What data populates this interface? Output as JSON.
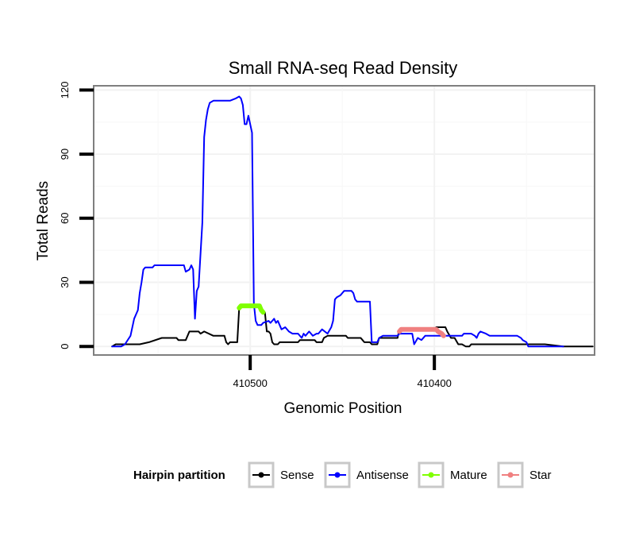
{
  "chart_data": {
    "type": "line",
    "title": "Small RNA-seq Read Density",
    "xlabel": "Genomic Position",
    "ylabel": "Total Reads",
    "x_reversed": true,
    "xlim": [
      410585,
      410313
    ],
    "ylim": [
      -4,
      122
    ],
    "x_ticks": [
      410500,
      410400
    ],
    "x_tick_labels": [
      "410500",
      "410400"
    ],
    "y_ticks": [
      0,
      30,
      60,
      90,
      120
    ],
    "y_tick_labels": [
      "0",
      "30",
      "60",
      "90",
      "120"
    ],
    "grid": true,
    "legend": {
      "title": "Hairpin partition",
      "position": "bottom"
    },
    "series": [
      {
        "name": "Sense",
        "color": "#000000",
        "points": [
          [
            410575,
            0
          ],
          [
            410573,
            1
          ],
          [
            410570,
            1
          ],
          [
            410565,
            1
          ],
          [
            410560,
            1
          ],
          [
            410555,
            2
          ],
          [
            410548,
            4
          ],
          [
            410546,
            4
          ],
          [
            410540,
            4
          ],
          [
            410539,
            3
          ],
          [
            410535,
            3
          ],
          [
            410533,
            7
          ],
          [
            410528,
            7
          ],
          [
            410527,
            6
          ],
          [
            410525,
            7
          ],
          [
            410520,
            5
          ],
          [
            410514,
            5
          ],
          [
            410513,
            2
          ],
          [
            410512,
            1
          ],
          [
            410511,
            2
          ],
          [
            410507,
            2
          ],
          [
            410506,
            18
          ],
          [
            410505,
            19
          ],
          [
            410495,
            19
          ],
          [
            410494,
            16
          ],
          [
            410492,
            16
          ],
          [
            410491,
            7
          ],
          [
            410490,
            7
          ],
          [
            410489,
            6
          ],
          [
            410488,
            2
          ],
          [
            410487,
            1
          ],
          [
            410485,
            1
          ],
          [
            410484,
            2
          ],
          [
            410474,
            2
          ],
          [
            410473,
            3
          ],
          [
            410465,
            3
          ],
          [
            410464,
            2
          ],
          [
            410461,
            2
          ],
          [
            410460,
            4
          ],
          [
            410458,
            5
          ],
          [
            410448,
            5
          ],
          [
            410447,
            4
          ],
          [
            410440,
            4
          ],
          [
            410439,
            3
          ],
          [
            410438,
            2
          ],
          [
            410435,
            2
          ],
          [
            410434,
            1
          ],
          [
            410431,
            1
          ],
          [
            410430,
            4
          ],
          [
            410420,
            4
          ],
          [
            410419,
            8
          ],
          [
            410418,
            8
          ],
          [
            410400,
            8
          ],
          [
            410399,
            9
          ],
          [
            410394,
            9
          ],
          [
            410393,
            7
          ],
          [
            410391,
            4
          ],
          [
            410389,
            4
          ],
          [
            410387,
            1
          ],
          [
            410385,
            1
          ],
          [
            410383,
            0
          ],
          [
            410381,
            0
          ],
          [
            410380,
            1
          ],
          [
            410372,
            1
          ],
          [
            410350,
            1
          ],
          [
            410340,
            1
          ],
          [
            410330,
            0
          ],
          [
            410314,
            0
          ]
        ]
      },
      {
        "name": "Antisense",
        "color": "#0000ff",
        "points": [
          [
            410575,
            0
          ],
          [
            410570,
            0
          ],
          [
            410568,
            1
          ],
          [
            410565,
            5
          ],
          [
            410563,
            13
          ],
          [
            410561,
            17
          ],
          [
            410560,
            25
          ],
          [
            410559,
            30
          ],
          [
            410558,
            36
          ],
          [
            410557,
            37
          ],
          [
            410553,
            37
          ],
          [
            410552,
            38
          ],
          [
            410541,
            38
          ],
          [
            410536,
            38
          ],
          [
            410535,
            35
          ],
          [
            410533,
            36
          ],
          [
            410532,
            38
          ],
          [
            410531,
            36
          ],
          [
            410530,
            13
          ],
          [
            410529,
            26
          ],
          [
            410528,
            28
          ],
          [
            410526,
            58
          ],
          [
            410525,
            98
          ],
          [
            410524,
            106
          ],
          [
            410523,
            111
          ],
          [
            410522,
            114
          ],
          [
            410520,
            115
          ],
          [
            410511,
            115
          ],
          [
            410508,
            116
          ],
          [
            410506,
            117
          ],
          [
            410505,
            116
          ],
          [
            410504,
            113
          ],
          [
            410503,
            104
          ],
          [
            410502,
            104
          ],
          [
            410501,
            108
          ],
          [
            410500,
            104
          ],
          [
            410499,
            100
          ],
          [
            410498,
            20
          ],
          [
            410497,
            12
          ],
          [
            410496,
            10
          ],
          [
            410494,
            10
          ],
          [
            410493,
            11
          ],
          [
            410490,
            12
          ],
          [
            410489,
            11
          ],
          [
            410488,
            12
          ],
          [
            410487,
            13
          ],
          [
            410486,
            11
          ],
          [
            410485,
            12
          ],
          [
            410484,
            10
          ],
          [
            410483,
            8
          ],
          [
            410481,
            9
          ],
          [
            410479,
            7
          ],
          [
            410477,
            6
          ],
          [
            410474,
            6
          ],
          [
            410472,
            4
          ],
          [
            410471,
            6
          ],
          [
            410470,
            5
          ],
          [
            410468,
            7
          ],
          [
            410466,
            5
          ],
          [
            410464,
            6
          ],
          [
            410463,
            6
          ],
          [
            410461,
            8
          ],
          [
            410458,
            6
          ],
          [
            410456,
            9
          ],
          [
            410455,
            12
          ],
          [
            410454,
            22
          ],
          [
            410453,
            23
          ],
          [
            410451,
            24
          ],
          [
            410450,
            25
          ],
          [
            410449,
            26
          ],
          [
            410445,
            26
          ],
          [
            410444,
            25
          ],
          [
            410443,
            22
          ],
          [
            410442,
            21
          ],
          [
            410435,
            21
          ],
          [
            410434,
            2
          ],
          [
            410431,
            2
          ],
          [
            410430,
            4
          ],
          [
            410428,
            5
          ],
          [
            410420,
            5
          ],
          [
            410419,
            6
          ],
          [
            410412,
            6
          ],
          [
            410411,
            1
          ],
          [
            410409,
            4
          ],
          [
            410407,
            3
          ],
          [
            410405,
            5
          ],
          [
            410385,
            5
          ],
          [
            410384,
            6
          ],
          [
            410380,
            6
          ],
          [
            410378,
            5
          ],
          [
            410377,
            4
          ],
          [
            410376,
            6
          ],
          [
            410375,
            7
          ],
          [
            410372,
            6
          ],
          [
            410370,
            5
          ],
          [
            410355,
            5
          ],
          [
            410353,
            4
          ],
          [
            410352,
            3
          ],
          [
            410350,
            2
          ],
          [
            410349,
            0
          ],
          [
            410330,
            0
          ]
        ]
      },
      {
        "name": "Mature",
        "color": "#7fff00",
        "points": [
          [
            410506,
            18
          ],
          [
            410505,
            19
          ],
          [
            410500,
            19
          ],
          [
            410495,
            19
          ],
          [
            410494,
            17
          ],
          [
            410493,
            16
          ]
        ]
      },
      {
        "name": "Star",
        "color": "#f08080",
        "points": [
          [
            410419,
            7
          ],
          [
            410418,
            8
          ],
          [
            410410,
            8
          ],
          [
            410402,
            8
          ],
          [
            410399,
            8
          ],
          [
            410398,
            7
          ],
          [
            410396,
            6
          ],
          [
            410395,
            5
          ]
        ]
      }
    ]
  }
}
